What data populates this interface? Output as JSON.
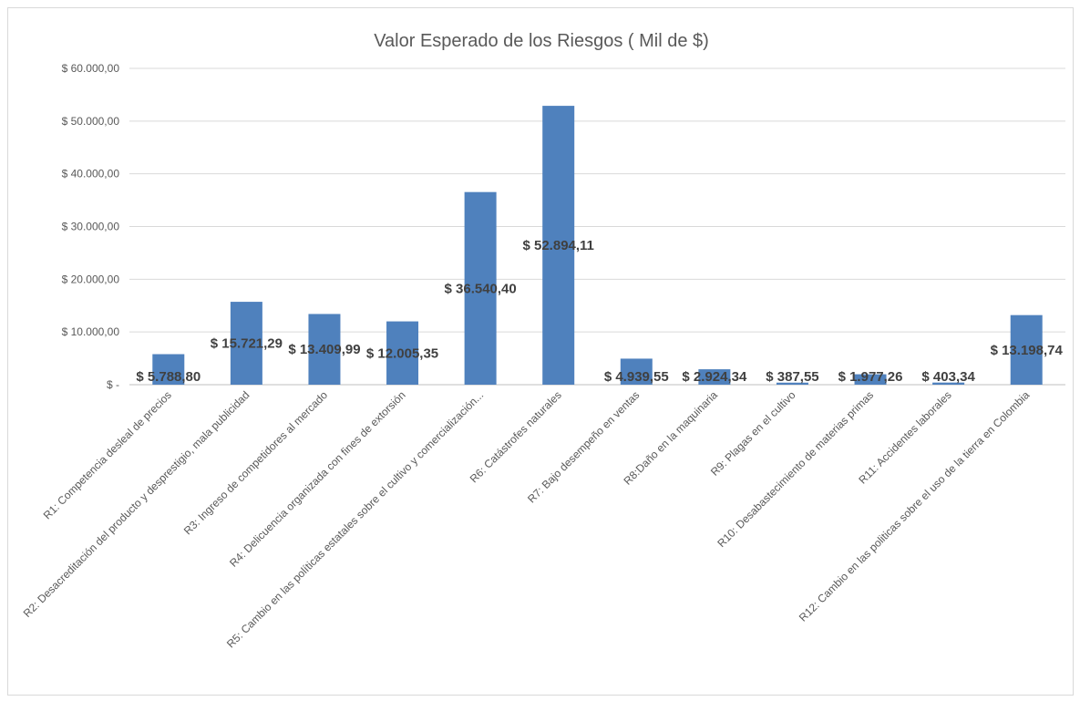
{
  "chart_data": {
    "type": "bar",
    "title": "Valor Esperado de los Riesgos ( Mil de $)",
    "xlabel": "",
    "ylabel": "",
    "ylim": [
      0,
      60000
    ],
    "y_ticks": [
      0,
      10000,
      20000,
      30000,
      40000,
      50000,
      60000
    ],
    "y_tick_labels": [
      "$ -",
      "$ 10.000,00",
      "$ 20.000,00",
      "$ 30.000,00",
      "$ 40.000,00",
      "$ 50.000,00",
      "$ 60.000,00"
    ],
    "grid": true,
    "legend": "none",
    "bar_color": "#4f81bd",
    "categories": [
      "R1: Competencia desleal de precios",
      "R2: Desacreditación del producto y desprestigio, mala publicidad",
      "R3: Ingreso de competidores al mercado",
      "R4: Delicuencia organizada con fines de extorsión",
      "R5: Cambio en las políticas estatales sobre el cultivo y comercialización...",
      "R6: Catástrofes naturales",
      "R7: Bajo desempeño en ventas",
      "R8:Daño en la maquinaria",
      "R9: Plagas en el cultivo",
      "R10: Desabastecimiento de materias primas",
      "R11: Accidentes laborales",
      "R12: Cambio en las politicas sobre el uso de la tierra en Colombia"
    ],
    "values": [
      5788.8,
      15721.29,
      13409.99,
      12005.35,
      36540.4,
      52894.11,
      4939.55,
      2924.34,
      387.55,
      1977.26,
      403.34,
      13198.74
    ],
    "data_labels": [
      "$ 5.788,80",
      "$ 15.721,29",
      "$ 13.409,99",
      "$ 12.005,35",
      "$ 36.540,40",
      "$ 52.894,11",
      "$ 4.939,55",
      "$ 2.924,34",
      "$ 387,55",
      "$ 1.977,26",
      "$ 403,34",
      "$ 13.198,74"
    ]
  }
}
